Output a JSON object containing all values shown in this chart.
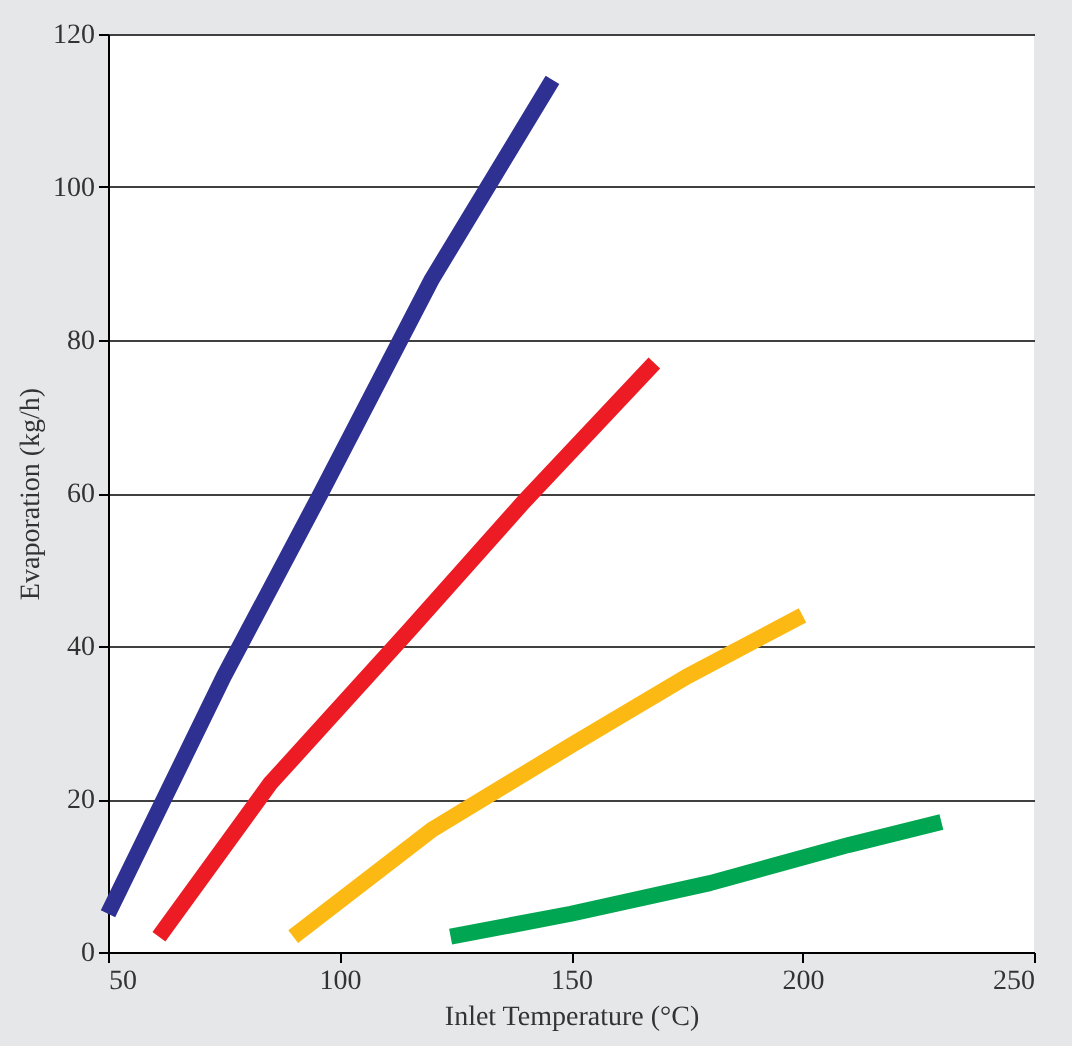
{
  "chart_data": {
    "type": "line",
    "xlabel": "Inlet Temperature (°C)",
    "ylabel": "Evaporation (kg/h)",
    "xlim": [
      50,
      250
    ],
    "ylim": [
      0,
      120
    ],
    "xticks": [
      50,
      100,
      150,
      200,
      250
    ],
    "yticks": [
      0,
      20,
      40,
      60,
      80,
      100,
      120
    ],
    "grid": "y",
    "marker": "none",
    "line_style": "solid",
    "series": [
      {
        "color": "#2e3192",
        "x": [
          50,
          75,
          96,
          120,
          146
        ],
        "values": [
          5,
          36,
          60,
          88,
          114
        ]
      },
      {
        "color": "#ed1c24",
        "x": [
          61,
          85,
          115,
          140,
          168
        ],
        "values": [
          2,
          22,
          42,
          59,
          77
        ]
      },
      {
        "color": "#fdb913",
        "x": [
          90,
          120,
          150,
          175,
          200
        ],
        "values": [
          2,
          16,
          27,
          36,
          44
        ]
      },
      {
        "color": "#00a651",
        "x": [
          124,
          150,
          180,
          210,
          230
        ],
        "values": [
          2,
          5,
          9,
          14,
          17
        ]
      }
    ]
  }
}
